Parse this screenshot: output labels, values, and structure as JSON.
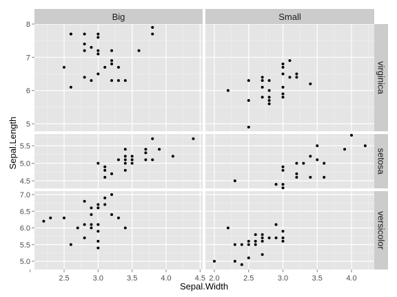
{
  "chart_data": {
    "type": "scatter",
    "xlabel": "Sepal.Width",
    "ylabel": "Sepal.Length",
    "facet_cols": [
      "Big",
      "Small"
    ],
    "facet_rows": [
      "virginica",
      "setosa",
      "versicolor"
    ],
    "x_ticks": [
      {
        "value": 2.0,
        "label": ""
      },
      {
        "value": 2.5,
        "label": "2.5"
      },
      {
        "value": 3.0,
        "label": "3.0"
      },
      {
        "value": 3.5,
        "label": "3.5"
      },
      {
        "value": 4.0,
        "label": "4.0"
      },
      {
        "value": 4.5,
        "label": "4.5"
      }
    ],
    "x_ticks_right": [
      {
        "value": 2.0,
        "label": "2.0"
      },
      {
        "value": 2.5,
        "label": "2.5"
      },
      {
        "value": 3.0,
        "label": "3.0"
      },
      {
        "value": 3.5,
        "label": "3.5"
      },
      {
        "value": 4.0,
        "label": "4.0"
      }
    ],
    "panels": [
      {
        "row": "virginica",
        "col": "Big",
        "y_ticks": [
          {
            "value": 5,
            "label": "5"
          },
          {
            "value": 6,
            "label": "6"
          },
          {
            "value": 7,
            "label": "7"
          },
          {
            "value": 8,
            "label": "8"
          }
        ],
        "points": [
          {
            "x": 2.6,
            "y": 7.7
          },
          {
            "x": 2.6,
            "y": 7.7
          },
          {
            "x": 2.8,
            "y": 7.7
          },
          {
            "x": 3.0,
            "y": 7.7
          },
          {
            "x": 3.0,
            "y": 7.6
          },
          {
            "x": 3.8,
            "y": 7.9
          },
          {
            "x": 3.8,
            "y": 7.7
          },
          {
            "x": 2.8,
            "y": 7.4
          },
          {
            "x": 2.9,
            "y": 7.3
          },
          {
            "x": 3.0,
            "y": 7.2
          },
          {
            "x": 3.2,
            "y": 7.2
          },
          {
            "x": 3.6,
            "y": 7.2
          },
          {
            "x": 2.8,
            "y": 7.2
          },
          {
            "x": 3.0,
            "y": 7.1
          },
          {
            "x": 3.2,
            "y": 6.9
          },
          {
            "x": 3.2,
            "y": 6.8
          },
          {
            "x": 2.5,
            "y": 6.7
          },
          {
            "x": 3.1,
            "y": 6.7
          },
          {
            "x": 3.3,
            "y": 6.7
          },
          {
            "x": 3.0,
            "y": 6.5
          },
          {
            "x": 2.8,
            "y": 6.4
          },
          {
            "x": 3.2,
            "y": 6.3
          },
          {
            "x": 2.9,
            "y": 6.3
          },
          {
            "x": 3.3,
            "y": 6.3
          },
          {
            "x": 3.4,
            "y": 6.3
          },
          {
            "x": 2.6,
            "y": 6.1
          }
        ]
      },
      {
        "row": "virginica",
        "col": "Small",
        "y_ticks": [
          {
            "value": 5,
            "label": "5"
          },
          {
            "value": 6,
            "label": "6"
          },
          {
            "value": 7,
            "label": "7"
          },
          {
            "value": 8,
            "label": "8"
          }
        ],
        "points": [
          {
            "x": 3.1,
            "y": 6.9
          },
          {
            "x": 3.0,
            "y": 6.8
          },
          {
            "x": 3.0,
            "y": 6.7
          },
          {
            "x": 3.0,
            "y": 6.5
          },
          {
            "x": 3.2,
            "y": 6.5
          },
          {
            "x": 3.2,
            "y": 6.4
          },
          {
            "x": 3.1,
            "y": 6.4
          },
          {
            "x": 2.7,
            "y": 6.4
          },
          {
            "x": 2.7,
            "y": 6.3
          },
          {
            "x": 2.5,
            "y": 6.3
          },
          {
            "x": 2.8,
            "y": 6.3
          },
          {
            "x": 3.4,
            "y": 6.2
          },
          {
            "x": 3.0,
            "y": 6.1
          },
          {
            "x": 2.7,
            "y": 6.1
          },
          {
            "x": 2.8,
            "y": 6.0
          },
          {
            "x": 2.2,
            "y": 6.0
          },
          {
            "x": 3.0,
            "y": 5.9
          },
          {
            "x": 3.0,
            "y": 5.8
          },
          {
            "x": 2.8,
            "y": 5.8
          },
          {
            "x": 2.7,
            "y": 5.8
          },
          {
            "x": 2.8,
            "y": 5.7
          },
          {
            "x": 2.8,
            "y": 5.6
          },
          {
            "x": 2.5,
            "y": 5.7
          },
          {
            "x": 2.5,
            "y": 4.9
          }
        ]
      },
      {
        "row": "setosa",
        "col": "Big",
        "y_ticks": [
          {
            "value": 5.5,
            "label": "5.5"
          },
          {
            "value": 5.0,
            "label": "5.0"
          },
          {
            "value": 4.5,
            "label": "4.5"
          }
        ],
        "points": [
          {
            "x": 4.4,
            "y": 5.7
          },
          {
            "x": 3.8,
            "y": 5.7
          },
          {
            "x": 3.4,
            "y": 5.4
          },
          {
            "x": 3.7,
            "y": 5.4
          },
          {
            "x": 3.9,
            "y": 5.4
          },
          {
            "x": 3.7,
            "y": 5.3
          },
          {
            "x": 4.1,
            "y": 5.2
          },
          {
            "x": 3.5,
            "y": 5.2
          },
          {
            "x": 3.4,
            "y": 5.2
          },
          {
            "x": 3.8,
            "y": 5.1
          },
          {
            "x": 3.3,
            "y": 5.1
          },
          {
            "x": 3.4,
            "y": 5.1
          },
          {
            "x": 3.5,
            "y": 5.1
          },
          {
            "x": 3.7,
            "y": 5.1
          },
          {
            "x": 3.0,
            "y": 5.0
          },
          {
            "x": 3.4,
            "y": 5.0
          },
          {
            "x": 3.5,
            "y": 5.0
          },
          {
            "x": 3.1,
            "y": 4.9
          },
          {
            "x": 3.1,
            "y": 4.8
          },
          {
            "x": 3.4,
            "y": 4.8
          },
          {
            "x": 3.2,
            "y": 4.7
          },
          {
            "x": 3.1,
            "y": 4.6
          }
        ]
      },
      {
        "row": "setosa",
        "col": "Small",
        "y_ticks": [
          {
            "value": 5.5,
            "label": "5.5"
          },
          {
            "value": 5.0,
            "label": "5.0"
          },
          {
            "value": 4.5,
            "label": "4.5"
          }
        ],
        "points": [
          {
            "x": 4.0,
            "y": 5.8
          },
          {
            "x": 4.2,
            "y": 5.5
          },
          {
            "x": 3.5,
            "y": 5.5
          },
          {
            "x": 3.9,
            "y": 5.4
          },
          {
            "x": 3.4,
            "y": 5.2
          },
          {
            "x": 3.5,
            "y": 5.1
          },
          {
            "x": 3.6,
            "y": 5.0
          },
          {
            "x": 3.2,
            "y": 5.0
          },
          {
            "x": 3.3,
            "y": 5.0
          },
          {
            "x": 3.0,
            "y": 4.9
          },
          {
            "x": 3.0,
            "y": 4.8
          },
          {
            "x": 3.2,
            "y": 4.7
          },
          {
            "x": 3.6,
            "y": 4.6
          },
          {
            "x": 3.4,
            "y": 4.6
          },
          {
            "x": 3.2,
            "y": 4.6
          },
          {
            "x": 2.3,
            "y": 4.5
          },
          {
            "x": 3.0,
            "y": 4.4
          },
          {
            "x": 2.9,
            "y": 4.4
          },
          {
            "x": 3.0,
            "y": 4.3
          }
        ]
      },
      {
        "row": "versicolor",
        "col": "Big",
        "y_ticks": [
          {
            "value": 7.0,
            "label": "7.0"
          },
          {
            "value": 6.5,
            "label": "6.5"
          },
          {
            "value": 6.0,
            "label": "6.0"
          },
          {
            "value": 5.5,
            "label": "5.5"
          },
          {
            "value": 5.0,
            "label": "5.0"
          }
        ],
        "points": [
          {
            "x": 3.2,
            "y": 7.0
          },
          {
            "x": 3.1,
            "y": 6.9
          },
          {
            "x": 3.0,
            "y": 6.7
          },
          {
            "x": 3.1,
            "y": 6.7
          },
          {
            "x": 3.0,
            "y": 6.6
          },
          {
            "x": 2.8,
            "y": 6.8
          },
          {
            "x": 2.9,
            "y": 6.6
          },
          {
            "x": 2.9,
            "y": 6.4
          },
          {
            "x": 3.2,
            "y": 6.4
          },
          {
            "x": 2.2,
            "y": 6.2
          },
          {
            "x": 2.3,
            "y": 6.3
          },
          {
            "x": 2.5,
            "y": 6.3
          },
          {
            "x": 3.3,
            "y": 6.3
          },
          {
            "x": 2.8,
            "y": 6.1
          },
          {
            "x": 2.9,
            "y": 6.1
          },
          {
            "x": 3.0,
            "y": 6.1
          },
          {
            "x": 2.7,
            "y": 6.0
          },
          {
            "x": 2.9,
            "y": 6.0
          },
          {
            "x": 3.4,
            "y": 6.0
          },
          {
            "x": 2.6,
            "y": 5.5
          },
          {
            "x": 2.8,
            "y": 5.7
          },
          {
            "x": 3.0,
            "y": 5.6
          },
          {
            "x": 3.0,
            "y": 5.4
          },
          {
            "x": 3.0,
            "y": 5.9
          }
        ]
      },
      {
        "row": "versicolor",
        "col": "Small",
        "y_ticks": [
          {
            "value": 7.0,
            "label": "7.0"
          },
          {
            "value": 6.5,
            "label": "6.5"
          },
          {
            "value": 6.0,
            "label": "6.0"
          },
          {
            "value": 5.5,
            "label": "5.5"
          },
          {
            "value": 5.0,
            "label": "5.0"
          }
        ],
        "points": [
          {
            "x": 2.2,
            "y": 6.0
          },
          {
            "x": 2.9,
            "y": 6.1
          },
          {
            "x": 3.0,
            "y": 5.9
          },
          {
            "x": 2.7,
            "y": 5.8
          },
          {
            "x": 2.6,
            "y": 5.8
          },
          {
            "x": 2.7,
            "y": 5.7
          },
          {
            "x": 2.9,
            "y": 5.7
          },
          {
            "x": 2.8,
            "y": 5.7
          },
          {
            "x": 3.0,
            "y": 5.7
          },
          {
            "x": 2.6,
            "y": 5.6
          },
          {
            "x": 2.7,
            "y": 5.6
          },
          {
            "x": 2.5,
            "y": 5.6
          },
          {
            "x": 3.0,
            "y": 5.6
          },
          {
            "x": 2.3,
            "y": 5.5
          },
          {
            "x": 2.4,
            "y": 5.5
          },
          {
            "x": 2.5,
            "y": 5.5
          },
          {
            "x": 2.6,
            "y": 5.5
          },
          {
            "x": 2.7,
            "y": 5.2
          },
          {
            "x": 2.5,
            "y": 5.1
          },
          {
            "x": 2.4,
            "y": 4.9
          },
          {
            "x": 2.3,
            "y": 5.0
          },
          {
            "x": 2.0,
            "y": 5.0
          }
        ]
      }
    ]
  }
}
